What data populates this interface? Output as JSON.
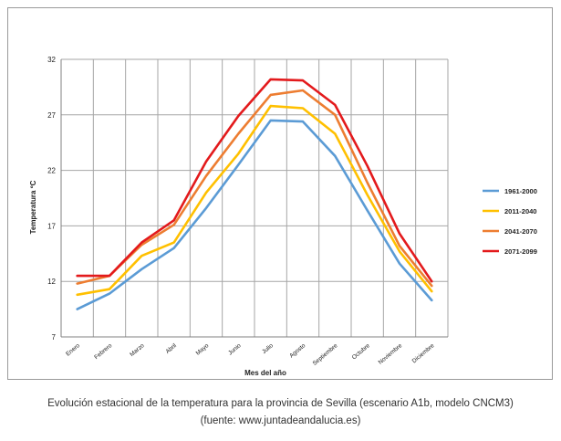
{
  "chart_data": {
    "type": "line",
    "categories": [
      "Enero",
      "Febrero",
      "Marzo",
      "Abril",
      "Mayo",
      "Junio",
      "Julio",
      "Agosto",
      "Septiembre",
      "Octubre",
      "Noviembre",
      "Diciembre"
    ],
    "series": [
      {
        "name": "1961-2000",
        "color": "#5b9bd5",
        "values": [
          9.5,
          10.9,
          13.1,
          15.0,
          18.6,
          22.5,
          26.5,
          26.4,
          23.3,
          18.4,
          13.6,
          10.3
        ]
      },
      {
        "name": "2011-2040",
        "color": "#ffc000",
        "values": [
          10.8,
          11.3,
          14.3,
          15.5,
          20.0,
          23.5,
          27.8,
          27.6,
          25.3,
          19.8,
          14.7,
          11.1
        ]
      },
      {
        "name": "2041-2070",
        "color": "#ed7d31",
        "values": [
          11.8,
          12.5,
          15.3,
          17.1,
          21.5,
          25.3,
          28.8,
          29.2,
          27.0,
          20.9,
          15.2,
          11.6
        ]
      },
      {
        "name": "2071-2099",
        "color": "#e31a1c",
        "values": [
          12.5,
          12.5,
          15.5,
          17.5,
          22.8,
          26.9,
          30.2,
          30.1,
          27.9,
          22.4,
          16.3,
          12.0
        ]
      }
    ],
    "title": "",
    "xlabel": "Mes del año",
    "ylabel": "Temperatura ºC",
    "ylim": [
      7,
      32
    ],
    "yticks": [
      7,
      12,
      17,
      22,
      27,
      32
    ],
    "grid": true,
    "legend": "right"
  },
  "caption": {
    "line1": "Evolución estacional de la temperatura para la provincia de Sevilla (escenario A1b, modelo CNCM3)",
    "line2": "(fuente: www.juntadeandalucia.es)"
  }
}
